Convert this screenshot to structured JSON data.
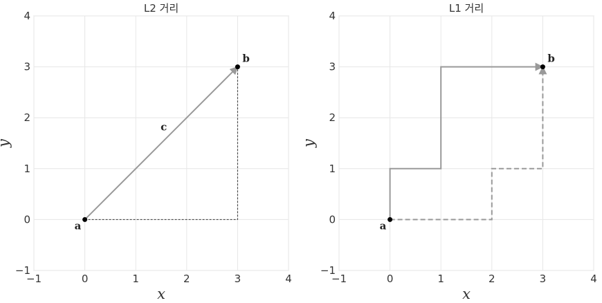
{
  "chart_data": [
    {
      "type": "line",
      "title": "L2 거리",
      "xlabel": "x",
      "ylabel": "y",
      "xlim": [
        -1,
        4
      ],
      "ylim": [
        -1,
        4
      ],
      "xticks": [
        -1,
        0,
        1,
        2,
        3,
        4
      ],
      "yticks": [
        -1,
        0,
        1,
        2,
        3,
        4
      ],
      "xtick_labels": [
        "−1",
        "0",
        "1",
        "2",
        "3",
        "4"
      ],
      "ytick_labels": [
        "−1",
        "0",
        "1",
        "2",
        "3",
        "4"
      ],
      "grid": true,
      "points": [
        {
          "label": "a",
          "x": 0,
          "y": 0
        },
        {
          "label": "b",
          "x": 3,
          "y": 3
        }
      ],
      "paths": [
        {
          "style": "solid-arrow",
          "color": "#999999",
          "points": [
            [
              0,
              0
            ],
            [
              3,
              3
            ]
          ]
        },
        {
          "style": "thin-dashed",
          "color": "#333333",
          "points": [
            [
              0,
              0
            ],
            [
              3,
              0
            ],
            [
              3,
              3
            ]
          ]
        }
      ],
      "annotations": [
        {
          "text": "c",
          "x": 1.55,
          "y": 1.75
        }
      ]
    },
    {
      "type": "line",
      "title": "L1 거리",
      "xlabel": "x",
      "ylabel": "y",
      "xlim": [
        -1,
        4
      ],
      "ylim": [
        -1,
        4
      ],
      "xticks": [
        -1,
        0,
        1,
        2,
        3,
        4
      ],
      "yticks": [
        -1,
        0,
        1,
        2,
        3,
        4
      ],
      "xtick_labels": [
        "−1",
        "0",
        "1",
        "2",
        "3",
        "4"
      ],
      "ytick_labels": [
        "−1",
        "0",
        "1",
        "2",
        "3",
        "4"
      ],
      "grid": true,
      "points": [
        {
          "label": "a",
          "x": 0,
          "y": 0
        },
        {
          "label": "b",
          "x": 3,
          "y": 3
        }
      ],
      "paths": [
        {
          "style": "solid-arrow",
          "color": "#999999",
          "points": [
            [
              0,
              0
            ],
            [
              0,
              1
            ],
            [
              1,
              1
            ],
            [
              1,
              3
            ],
            [
              3,
              3
            ]
          ]
        },
        {
          "style": "dashed-arrow",
          "color": "#999999",
          "points": [
            [
              0,
              0
            ],
            [
              2,
              0
            ],
            [
              2,
              1
            ],
            [
              3,
              1
            ],
            [
              3,
              3
            ]
          ]
        }
      ],
      "annotations": []
    }
  ]
}
